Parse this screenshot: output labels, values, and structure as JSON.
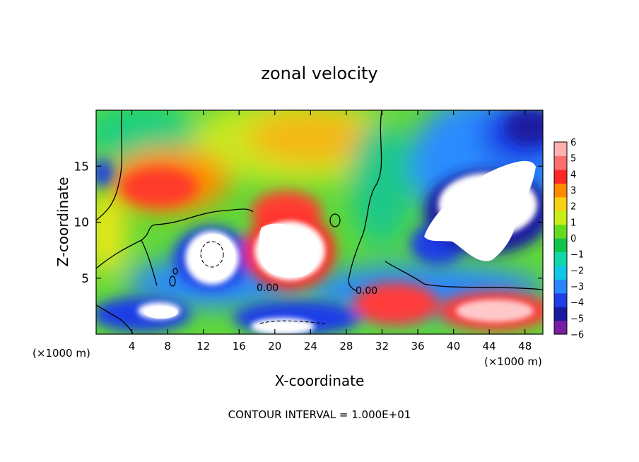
{
  "chart_data": {
    "type": "heatmap",
    "title": "zonal velocity",
    "xlabel": "X-coordinate",
    "ylabel": "Z-coordinate",
    "x_unit_label": "(×1000 m)",
    "x_unit_label_right": "(×1000 m)",
    "xlim": [
      0,
      50
    ],
    "ylim": [
      0,
      20
    ],
    "x_ticks": [
      4,
      8,
      12,
      16,
      20,
      24,
      28,
      32,
      36,
      40,
      44,
      48
    ],
    "y_ticks": [
      5,
      10,
      15
    ],
    "colorbar": {
      "ticks": [
        6,
        5,
        4,
        3,
        2,
        1,
        0,
        -1,
        -2,
        -3,
        -4,
        -5,
        -6
      ],
      "colors": [
        "#7a1fa2",
        "#1a1aa0",
        "#1e3ee6",
        "#2a86ff",
        "#10c8e6",
        "#10d8a8",
        "#12c44a",
        "#64dc1e",
        "#c8ee18",
        "#f8d014",
        "#ff8c00",
        "#ff2828",
        "#ff6e6e",
        "#ffb0b0"
      ]
    },
    "contour_labels": [
      "0.00",
      "0.00"
    ],
    "grid": false,
    "footer": "CONTOUR INTERVAL = 1.000E+01"
  }
}
